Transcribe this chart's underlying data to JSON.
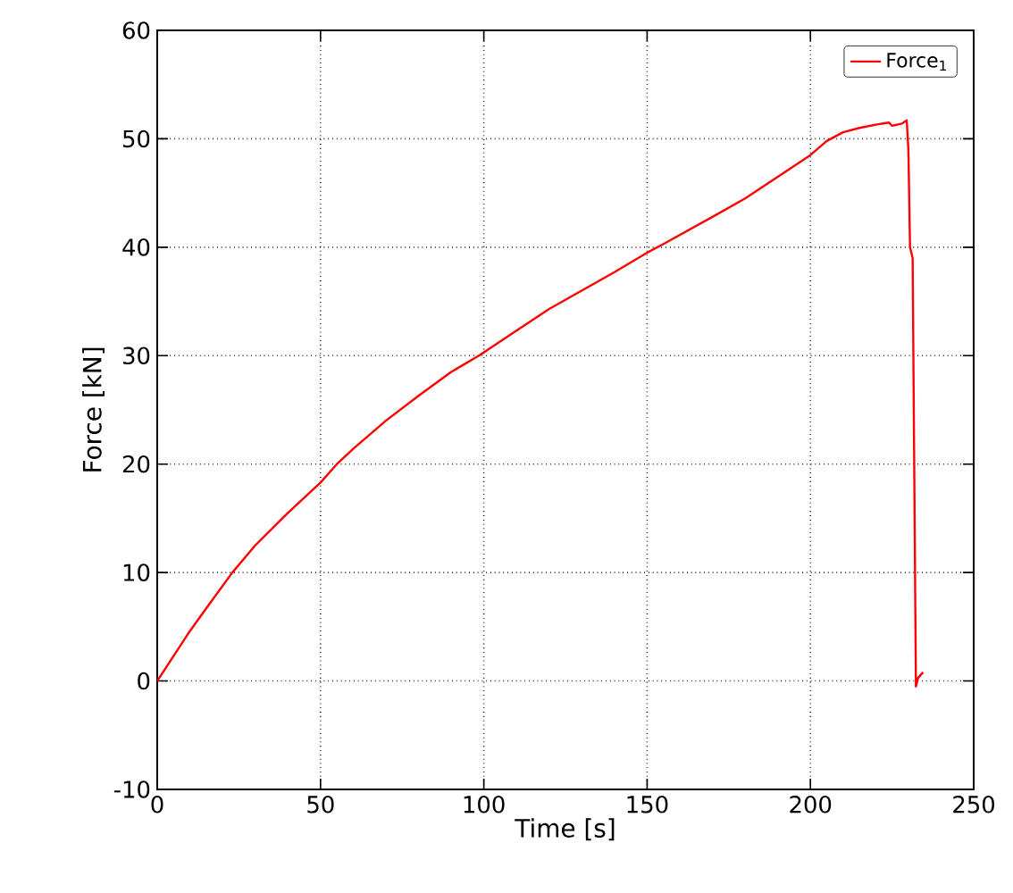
{
  "chart_data": {
    "type": "line",
    "xlabel": "Time [s]",
    "ylabel": "Force [kN]",
    "xlim": [
      0,
      250
    ],
    "ylim": [
      -10,
      60
    ],
    "xticks": [
      0,
      50,
      100,
      150,
      200,
      250
    ],
    "yticks": [
      -10,
      0,
      10,
      20,
      30,
      40,
      50,
      60
    ],
    "grid": true,
    "legend": "top right",
    "line_style": "solid",
    "marker": "none",
    "series": [
      {
        "name": "Force$_{1}$",
        "color": "#ff0000",
        "x": [
          0,
          5,
          10,
          15,
          23,
          30,
          40,
          50,
          55,
          60,
          70,
          80,
          90,
          98.5,
          110,
          120,
          130,
          140,
          150,
          155,
          170,
          180,
          190,
          200,
          205,
          210,
          215,
          220,
          224,
          225,
          228,
          229.5,
          230,
          230.5,
          231.3,
          232.3,
          233,
          234.5
        ],
        "values": [
          0,
          2.3,
          4.6,
          6.7,
          10,
          12.5,
          15.5,
          18.3,
          20,
          21.4,
          24,
          26.3,
          28.5,
          30,
          32.3,
          34.3,
          36,
          37.7,
          39.5,
          40.3,
          42.8,
          44.5,
          46.5,
          48.5,
          49.8,
          50.6,
          51,
          51.3,
          51.5,
          51.2,
          51.4,
          51.7,
          49,
          40,
          39,
          -0.5,
          0.3,
          0.8
        ]
      }
    ]
  }
}
